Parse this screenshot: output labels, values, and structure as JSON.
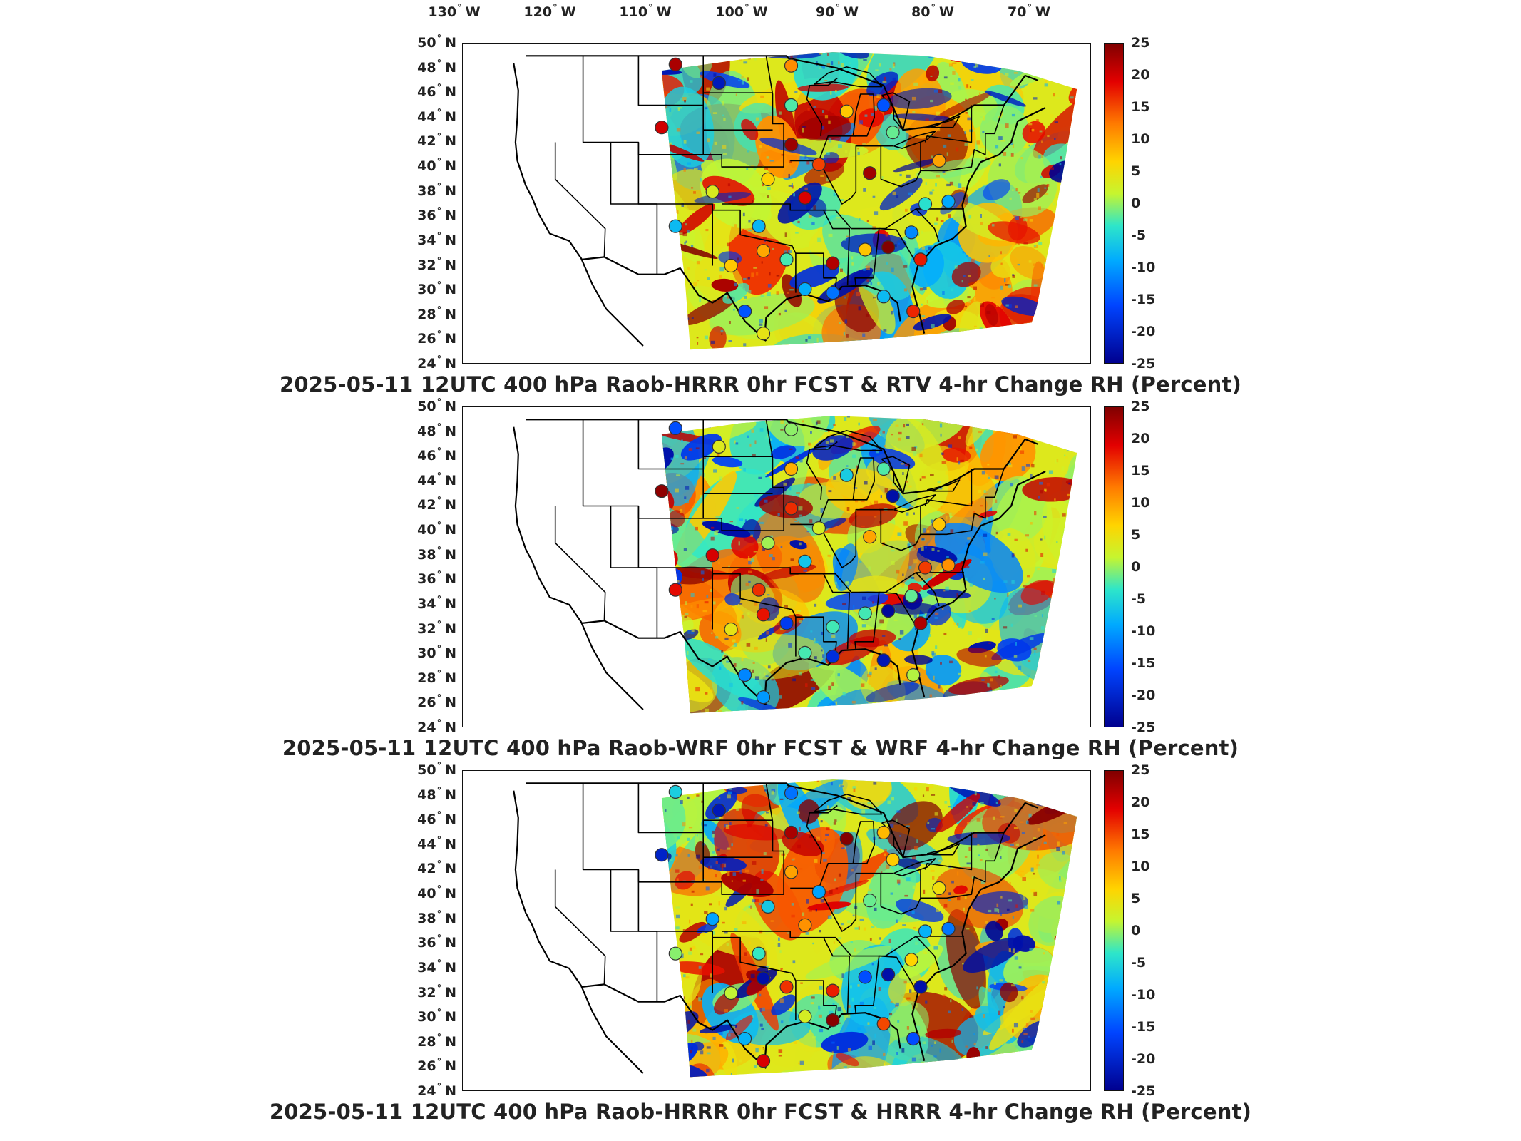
{
  "lon_labels": [
    "130",
    "120",
    "110",
    "100",
    "90",
    "80",
    "70"
  ],
  "lon_suffix": "W",
  "lat_labels": [
    "50",
    "48",
    "46",
    "44",
    "42",
    "40",
    "38",
    "36",
    "34",
    "32",
    "30",
    "28",
    "26",
    "24"
  ],
  "lat_suffix": "N",
  "degree_symbol": "°",
  "colorbar": {
    "ticks": [
      "25",
      "20",
      "15",
      "10",
      "5",
      "0",
      "-5",
      "-10",
      "-15",
      "-20",
      "-25"
    ],
    "min": -25,
    "max": 25,
    "colors": [
      "#00008f",
      "#0044ff",
      "#00aaff",
      "#2ee6c9",
      "#c6f52f",
      "#ffd400",
      "#ff7a00",
      "#e30000",
      "#800000"
    ]
  },
  "panels": [
    {
      "title": "2025-05-11 12UTC 400 hPa Raob-HRRR 0hr FCST & RTV 4-hr Change RH (Percent)"
    },
    {
      "title": "2025-05-11 12UTC 400 hPa Raob-WRF 0hr FCST & WRF 4-hr Change RH (Percent)"
    },
    {
      "title": "2025-05-11 12UTC 400 hPa Raob-HRRR 0hr FCST & HRRR 4-hr Change RH (Percent)"
    }
  ],
  "map_extent": {
    "lon": [
      -130,
      -62
    ],
    "lat": [
      24,
      50
    ]
  }
}
